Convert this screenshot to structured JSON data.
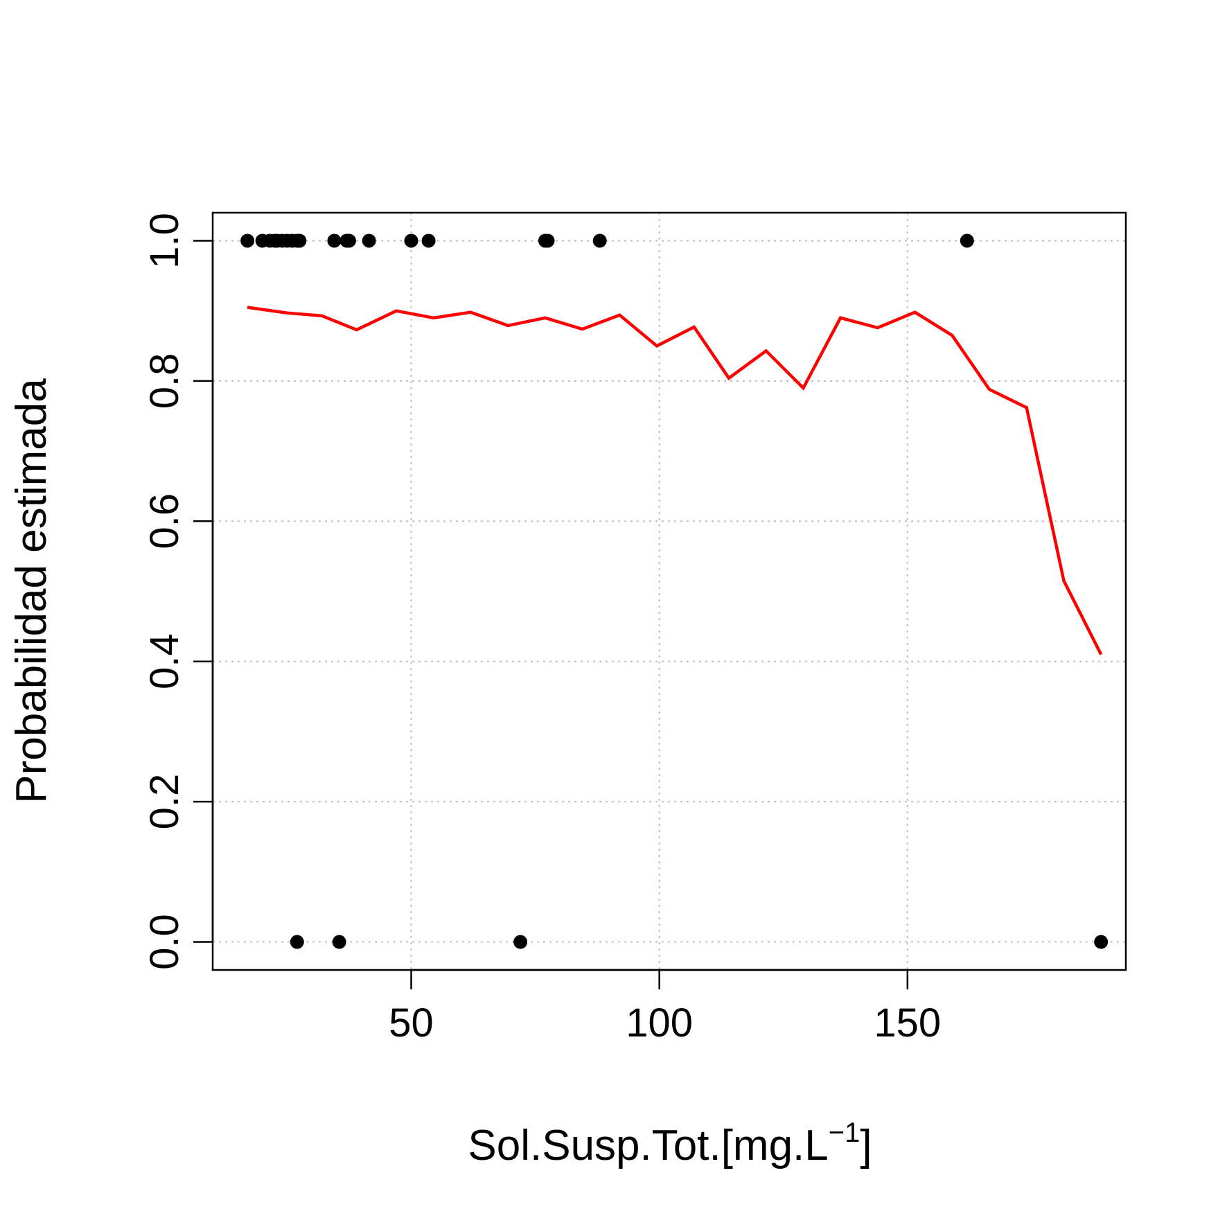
{
  "chart_data": {
    "type": "scatter",
    "xlabel": "Sol.Susp.Tot.[mg.L",
    "xlabel_sup": "−1",
    "xlabel_close": "]",
    "ylabel": "Probabilidad estimada",
    "xlim": [
      10,
      194
    ],
    "ylim": [
      -0.04,
      1.04
    ],
    "x_ticks": [
      50,
      100,
      150
    ],
    "x_tick_labels": [
      "50",
      "100",
      "150"
    ],
    "y_ticks": [
      0.0,
      0.2,
      0.4,
      0.6,
      0.8,
      1.0
    ],
    "y_tick_labels": [
      "0.0",
      "0.2",
      "0.4",
      "0.6",
      "0.8",
      "1.0"
    ],
    "grid": true,
    "colors": {
      "points": "#000000",
      "fitted_line": "#ff0000",
      "grid": "#bebebe"
    },
    "series": [
      {
        "kind": "points",
        "points": [
          [
            17,
            1
          ],
          [
            20,
            1
          ],
          [
            21.5,
            1
          ],
          [
            22.5,
            1
          ],
          [
            23,
            1
          ],
          [
            24,
            1
          ],
          [
            25,
            1
          ],
          [
            26,
            1
          ],
          [
            27,
            1
          ],
          [
            27.5,
            1
          ],
          [
            34.5,
            1
          ],
          [
            37,
            1
          ],
          [
            37.5,
            1
          ],
          [
            41.5,
            1
          ],
          [
            50,
            1
          ],
          [
            53.5,
            1
          ],
          [
            77,
            1
          ],
          [
            77.5,
            1
          ],
          [
            88,
            1
          ],
          [
            162,
            1
          ],
          [
            27,
            0
          ],
          [
            35.5,
            0
          ],
          [
            72,
            0
          ],
          [
            189,
            0
          ]
        ]
      },
      {
        "kind": "line",
        "points": [
          [
            17,
            0.905
          ],
          [
            25,
            0.897
          ],
          [
            32,
            0.893
          ],
          [
            39,
            0.873
          ],
          [
            47,
            0.9
          ],
          [
            54.5,
            0.89
          ],
          [
            62,
            0.898
          ],
          [
            69.5,
            0.879
          ],
          [
            77,
            0.89
          ],
          [
            84.5,
            0.874
          ],
          [
            92,
            0.894
          ],
          [
            99.5,
            0.85
          ],
          [
            107,
            0.877
          ],
          [
            114,
            0.804
          ],
          [
            121.5,
            0.843
          ],
          [
            129,
            0.79
          ],
          [
            136.5,
            0.89
          ],
          [
            144,
            0.876
          ],
          [
            151.5,
            0.898
          ],
          [
            159,
            0.865
          ],
          [
            166.5,
            0.788
          ],
          [
            174,
            0.762
          ],
          [
            181.5,
            0.515
          ],
          [
            189,
            0.41
          ]
        ]
      }
    ]
  }
}
